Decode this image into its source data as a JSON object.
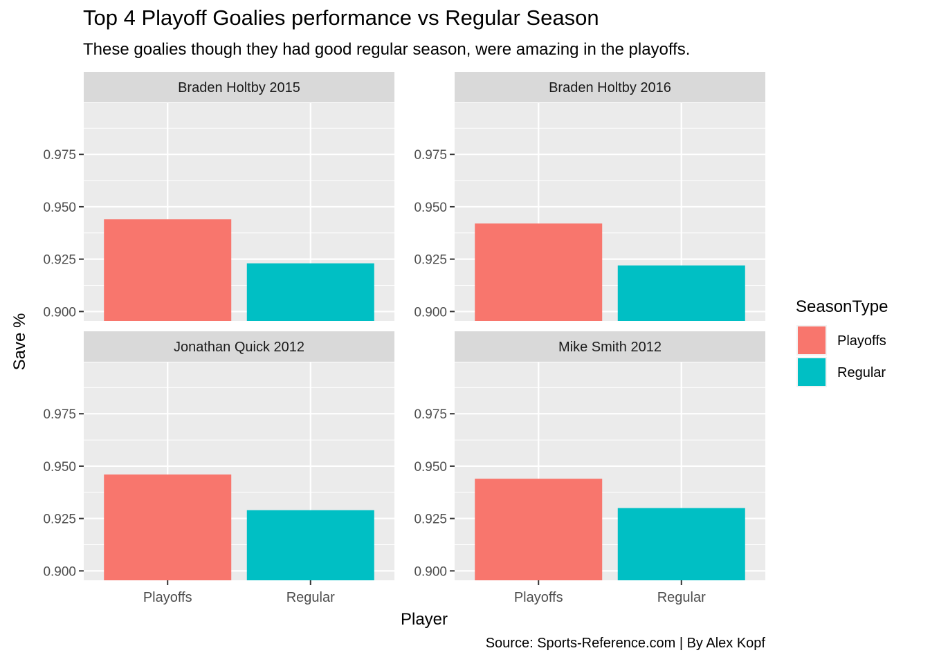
{
  "chart_data": {
    "type": "bar",
    "title": "Top 4 Playoff Goalies performance vs Regular Season",
    "subtitle": "These goalies though they had good regular season, were amazing in the playoffs.",
    "caption": "Source: Sports-Reference.com | By Alex Kopf",
    "xlabel": "Player",
    "ylabel": "Save %",
    "categories": [
      "Playoffs",
      "Regular"
    ],
    "yticks": [
      "0.900",
      "0.925",
      "0.950",
      "0.975"
    ],
    "ylim": [
      0.8955,
      0.9995
    ],
    "grid": true,
    "legend": {
      "title": "SeasonType",
      "position": "right",
      "items": [
        {
          "label": "Playoffs",
          "color": "#F8766D"
        },
        {
          "label": "Regular",
          "color": "#00BFC4"
        }
      ]
    },
    "panels": [
      {
        "label": "Braden Holtby 2015",
        "values": [
          0.944,
          0.923
        ]
      },
      {
        "label": "Braden Holtby 2016",
        "values": [
          0.942,
          0.922
        ]
      },
      {
        "label": "Jonathan Quick 2012",
        "values": [
          0.946,
          0.929
        ]
      },
      {
        "label": "Mike Smith 2012",
        "values": [
          0.944,
          0.93
        ]
      }
    ],
    "colors": {
      "panel_bg": "#EBEBEB",
      "strip_bg": "#D9D9D9",
      "grid": "#FFFFFF"
    }
  }
}
